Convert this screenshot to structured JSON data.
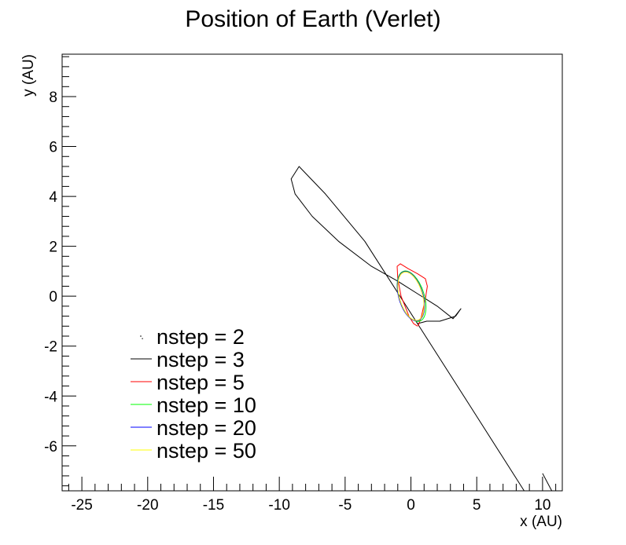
{
  "chart_data": {
    "type": "line",
    "title": "Position of Earth (Verlet)",
    "xlabel": "x (AU)",
    "ylabel": "y (AU)",
    "xlim": [
      -26.5,
      11.5
    ],
    "ylim": [
      -7.8,
      9.7
    ],
    "x_ticks": [
      -25,
      -20,
      -15,
      -10,
      -5,
      0,
      5,
      10
    ],
    "y_ticks": [
      -6,
      -4,
      -2,
      0,
      2,
      4,
      6,
      8
    ],
    "grid": false,
    "legend_position": "bottom-left",
    "series": [
      {
        "name": "nstep = 2",
        "color": "#000000",
        "line": false,
        "x": [
          -20.4
        ],
        "y": [
          -1.7
        ]
      },
      {
        "name": "nstep = 3",
        "color": "#000000",
        "x": [
          10.7,
          10.0,
          null,
          8.6,
          4.5,
          0.5,
          -3.5,
          -6.5,
          -8.5,
          -9.1,
          -8.8,
          -7.5,
          -5.5,
          -3.0,
          -1.0,
          0.5,
          2.0,
          3.2,
          3.8,
          3.4,
          2.2,
          1.2,
          0.5
        ],
        "y": [
          -7.8,
          -7.1,
          null,
          -7.8,
          -4.4,
          -1.1,
          2.2,
          4.1,
          5.2,
          4.7,
          4.1,
          3.2,
          2.2,
          1.2,
          0.6,
          0.1,
          -0.4,
          -0.9,
          -0.5,
          -0.8,
          -1.0,
          -1.0,
          -1.1
        ]
      },
      {
        "name": "nstep = 5",
        "color": "#ff0000",
        "x": [
          0.55,
          0.8,
          1.1,
          1.25,
          1.1,
          0.5,
          -0.2,
          -0.8,
          -1.05,
          -1.0,
          -0.75,
          -0.15,
          0.2,
          0.5
        ],
        "y": [
          -1.2,
          -0.8,
          -0.1,
          0.4,
          0.7,
          0.9,
          1.1,
          1.3,
          1.2,
          0.7,
          0.0,
          -0.8,
          -1.1,
          -1.2
        ]
      },
      {
        "name": "nstep = 10",
        "color": "#00ff00",
        "ellipse": {
          "cx": 0.05,
          "cy": 0.0,
          "rx": 0.95,
          "ry": 1.05,
          "tilt_deg": -18
        }
      },
      {
        "name": "nstep = 20",
        "color": "#0000ff",
        "ellipse": {
          "cx": 0.0,
          "cy": 0.0,
          "rx": 0.92,
          "ry": 1.02,
          "tilt_deg": -16
        }
      },
      {
        "name": "nstep = 50",
        "color": "#ffff00",
        "ellipse": {
          "cx": 0.0,
          "cy": 0.0,
          "rx": 0.88,
          "ry": 1.0,
          "tilt_deg": -16
        }
      }
    ]
  }
}
